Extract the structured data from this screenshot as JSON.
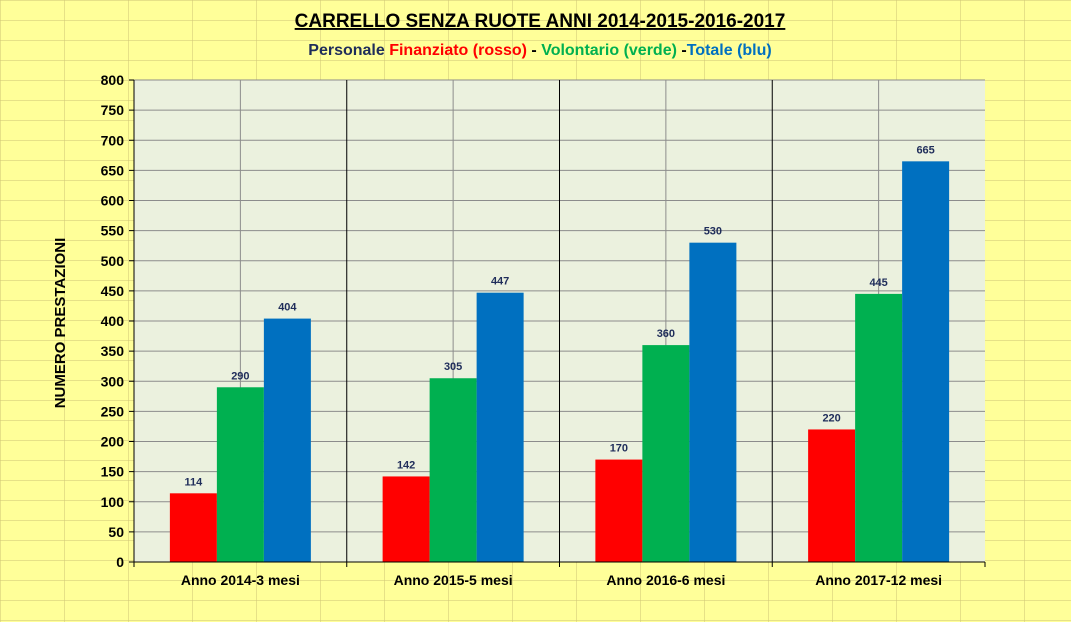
{
  "chart_data": {
    "type": "bar",
    "title": "CARRELLO SENZA RUOTE ANNI 2014-2015-2016-2017",
    "subtitle": [
      {
        "text": "Personale ",
        "color": "#1f2d5a"
      },
      {
        "text": "Finanziato (rosso)",
        "color": "#ff0000"
      },
      {
        "text": " - ",
        "color": "#000000"
      },
      {
        "text": "Volontario (verde)",
        "color": "#00b050"
      },
      {
        "text": " -",
        "color": "#000000"
      },
      {
        "text": "Totale (blu)",
        "color": "#0070c0"
      }
    ],
    "ylabel": "NUMERO PRESTAZIONI",
    "xlabel": "",
    "ylim": [
      0,
      800
    ],
    "ytick_step": 50,
    "grid": true,
    "categories": [
      "Anno 2014-3 mesi",
      "Anno 2015-5 mesi",
      "Anno 2016-6 mesi",
      "Anno 2017-12 mesi"
    ],
    "series": [
      {
        "color": "#ff0000",
        "values": [
          114,
          142,
          170,
          220
        ]
      },
      {
        "color": "#00b050",
        "values": [
          290,
          305,
          360,
          445
        ]
      },
      {
        "color": "#0070c0",
        "values": [
          404,
          447,
          530,
          665
        ]
      }
    ],
    "colors": {
      "plot_background": "#ebf1de",
      "page_background": "#ffff99"
    }
  }
}
